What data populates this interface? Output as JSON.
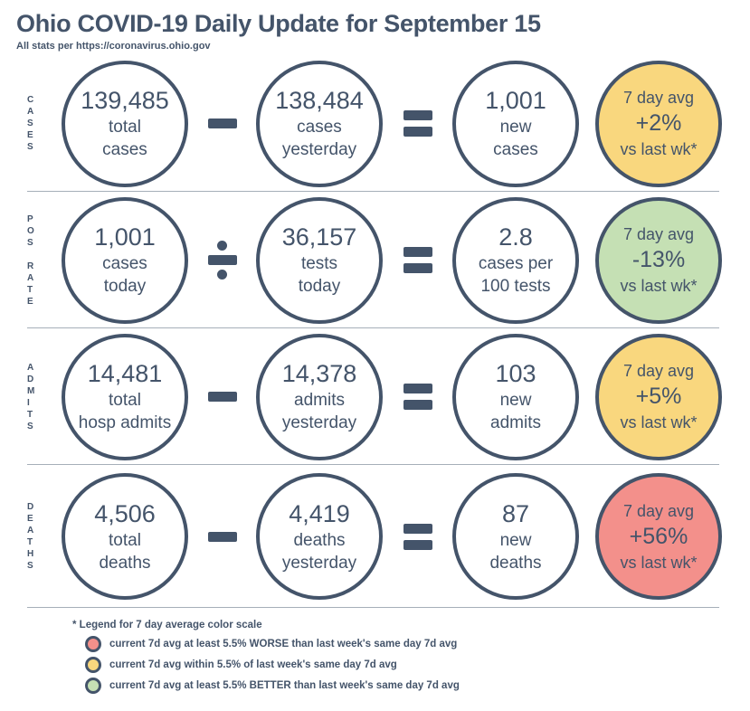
{
  "page": {
    "title": "Ohio COVID-19 Daily Update for September 15",
    "subtitle": "All stats per https://coronavirus.ohio.gov"
  },
  "colors": {
    "navy": "#44546A",
    "separator": "#A6AFB9",
    "worse_red": "#F3908B",
    "within_yellow": "#F9D77E",
    "better_green": "#C5E0B4"
  },
  "rows": [
    {
      "label": "C\nA\nS\nE\nS",
      "operator": "minus",
      "circles": [
        {
          "value": "139,485",
          "line1": "total",
          "line2": "cases"
        },
        {
          "value": "138,484",
          "line1": "cases",
          "line2": "yesterday"
        },
        {
          "value": "1,001",
          "line1": "new",
          "line2": "cases"
        }
      ],
      "avg": {
        "line1": "7 day avg",
        "value": "+2%",
        "line2": "vs last wk*",
        "color": "#F9D77E",
        "status": "within"
      }
    },
    {
      "label": "P\nO\nS\n\nR\nA\nT\nE",
      "operator": "divide",
      "circles": [
        {
          "value": "1,001",
          "line1": "cases",
          "line2": "today"
        },
        {
          "value": "36,157",
          "line1": "tests",
          "line2": "today"
        },
        {
          "value": "2.8",
          "line1": "cases per",
          "line2": "100 tests"
        }
      ],
      "avg": {
        "line1": "7 day avg",
        "value": "-13%",
        "line2": "vs last wk*",
        "color": "#C5E0B4",
        "status": "better"
      }
    },
    {
      "label": "A\nD\nM\nI\nT\nS",
      "operator": "minus",
      "circles": [
        {
          "value": "14,481",
          "line1": "total",
          "line2": "hosp admits"
        },
        {
          "value": "14,378",
          "line1": "admits",
          "line2": "yesterday"
        },
        {
          "value": "103",
          "line1": "new",
          "line2": "admits"
        }
      ],
      "avg": {
        "line1": "7 day avg",
        "value": "+5%",
        "line2": "vs last wk*",
        "color": "#F9D77E",
        "status": "within"
      }
    },
    {
      "label": "D\nE\nA\nT\nH\nS",
      "operator": "minus",
      "circles": [
        {
          "value": "4,506",
          "line1": "total",
          "line2": "deaths"
        },
        {
          "value": "4,419",
          "line1": "deaths",
          "line2": "yesterday"
        },
        {
          "value": "87",
          "line1": "new",
          "line2": "deaths"
        }
      ],
      "avg": {
        "line1": "7 day avg",
        "value": "+56%",
        "line2": "vs last wk*",
        "color": "#F3908B",
        "status": "worse"
      }
    }
  ],
  "legend": {
    "header": "* Legend for 7 day average color scale",
    "items": [
      {
        "color": "#F3908B",
        "text": "current 7d avg at least 5.5% WORSE than last week's same day 7d avg"
      },
      {
        "color": "#F9D77E",
        "text": "current 7d avg within 5.5% of last week's same day 7d avg"
      },
      {
        "color": "#C5E0B4",
        "text": "current 7d avg at least 5.5% BETTER than last week's same day 7d avg"
      }
    ]
  },
  "chart_data": {
    "type": "table",
    "title": "Ohio COVID-19 Daily Update for September 15",
    "rows": [
      {
        "metric": "CASES",
        "total_cases": 139485,
        "cases_yesterday": 138484,
        "new_cases": 1001,
        "seven_day_avg_vs_last_wk": "+2%",
        "status": "within"
      },
      {
        "metric": "POS RATE",
        "cases_today": 1001,
        "tests_today": 36157,
        "cases_per_100_tests": 2.8,
        "seven_day_avg_vs_last_wk": "-13%",
        "status": "better"
      },
      {
        "metric": "ADMITS",
        "total_hosp_admits": 14481,
        "admits_yesterday": 14378,
        "new_admits": 103,
        "seven_day_avg_vs_last_wk": "+5%",
        "status": "within"
      },
      {
        "metric": "DEATHS",
        "total_deaths": 4506,
        "deaths_yesterday": 4419,
        "new_deaths": 87,
        "seven_day_avg_vs_last_wk": "+56%",
        "status": "worse"
      }
    ]
  }
}
